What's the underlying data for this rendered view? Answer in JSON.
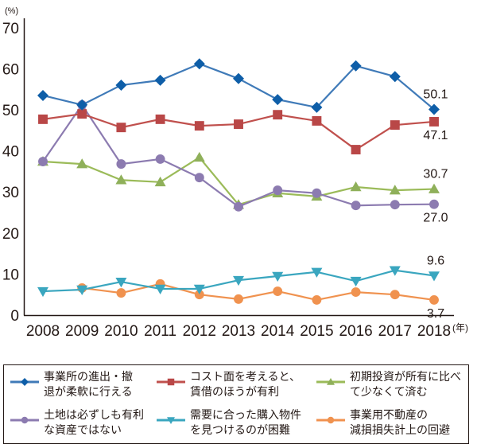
{
  "chart_data": {
    "type": "line",
    "title": "",
    "ylabel": "(%)",
    "xlabel": "(年)",
    "ylim": [
      0,
      70
    ],
    "yticks": [
      "0",
      "10",
      "20",
      "30",
      "40",
      "50",
      "60",
      "70"
    ],
    "categories": [
      "2008",
      "2009",
      "2010",
      "2011",
      "2012",
      "2013",
      "2014",
      "2015",
      "2016",
      "2017",
      "2018"
    ],
    "grid": false,
    "legend_position": "bottom",
    "series": [
      {
        "name": "事業所の進出・撤\n退が柔軟に行える",
        "color": "#0e5ea8",
        "line_color": "#3f7ab8",
        "marker": "diamond",
        "values": [
          53.5,
          51.2,
          56.0,
          57.2,
          61.2,
          57.6,
          52.5,
          50.6,
          60.7,
          58.1,
          50.1
        ],
        "end_label": "50.1"
      },
      {
        "name": "コスト面を考えると、\n賃借のほうが有利",
        "color": "#b94747",
        "line_color": "#c0504d",
        "marker": "square",
        "values": [
          47.7,
          49.0,
          45.7,
          47.7,
          46.1,
          46.5,
          48.8,
          47.3,
          40.3,
          46.3,
          47.1
        ],
        "end_label": "47.1"
      },
      {
        "name": "初期投資が所有に比べ\nて少なくて済む",
        "color": "#8fb05a",
        "line_color": "#9bbb59",
        "marker": "triangle",
        "values": [
          37.4,
          36.8,
          32.9,
          32.4,
          38.4,
          26.9,
          29.7,
          28.9,
          31.2,
          30.4,
          30.7
        ],
        "end_label": "30.7"
      },
      {
        "name": "土地は必ずしも有利\nな資産ではない",
        "color": "#8c7bb0",
        "line_color": "#8c7bb0",
        "marker": "circle",
        "values": [
          37.4,
          51.2,
          36.8,
          38.0,
          33.5,
          26.4,
          30.4,
          29.7,
          26.7,
          26.9,
          27.0
        ],
        "end_label": "27.0"
      },
      {
        "name": "需要に合った購入物件\nを見つけるのが困難",
        "color": "#3aa6bf",
        "line_color": "#3aa6bf",
        "marker": "triangle-down",
        "values": [
          5.8,
          6.2,
          8.1,
          6.4,
          6.4,
          8.5,
          9.5,
          10.5,
          8.3,
          10.9,
          9.6
        ],
        "end_label": "9.6"
      },
      {
        "name": "事業用不動産の\n減損損失計上の回避",
        "color": "#f0924f",
        "line_color": "#f0924f",
        "marker": "circle",
        "values": [
          null,
          6.6,
          5.4,
          7.6,
          5.0,
          3.9,
          5.8,
          3.7,
          5.6,
          5.0,
          3.7
        ],
        "end_label": "3.7"
      }
    ]
  }
}
